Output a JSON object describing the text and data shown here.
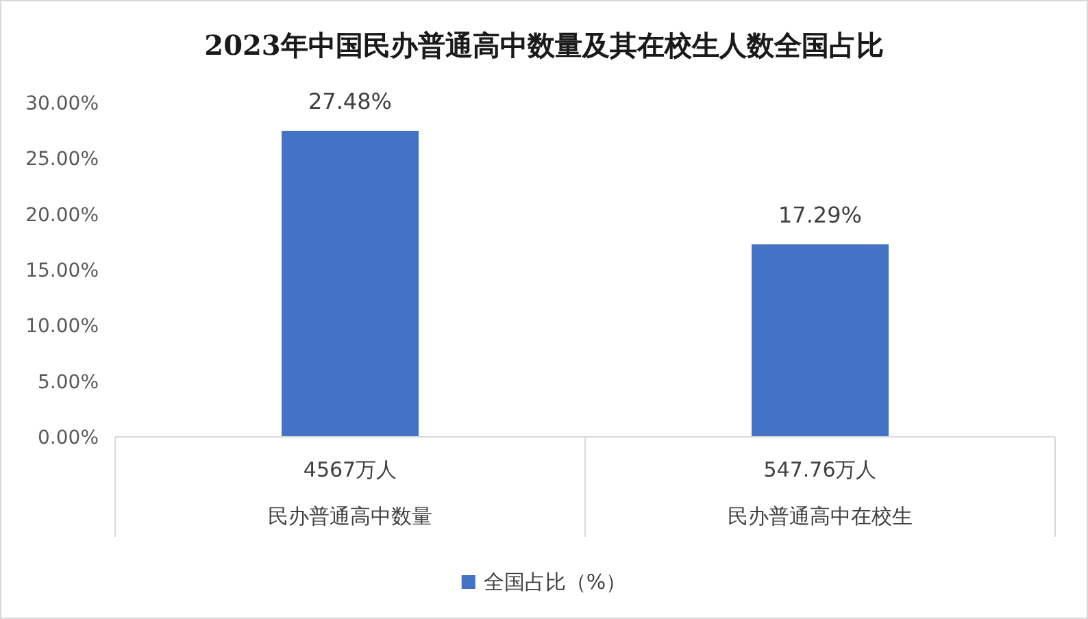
{
  "chart_data": {
    "type": "bar",
    "title": "2023年中国民办普通高中数量及其在校生人数全国占比",
    "categories": [
      "民办普通高中数量",
      "民办普通高中在校生"
    ],
    "annotations": [
      "4567万人",
      "547.76万人"
    ],
    "series": [
      {
        "name": "全国占比（%）",
        "color": "#4472c4",
        "values": [
          27.48,
          17.29
        ],
        "value_labels": [
          "27.48%",
          "17.29%"
        ]
      }
    ],
    "ylim": [
      0,
      30
    ],
    "yticks": [
      {
        "value": 0,
        "label": "0.00%"
      },
      {
        "value": 5,
        "label": "5.00%"
      },
      {
        "value": 10,
        "label": "10.00%"
      },
      {
        "value": 15,
        "label": "15.00%"
      },
      {
        "value": 20,
        "label": "20.00%"
      },
      {
        "value": 25,
        "label": "25.00%"
      },
      {
        "value": 30,
        "label": "30.00%"
      }
    ],
    "legend": "bottom"
  }
}
